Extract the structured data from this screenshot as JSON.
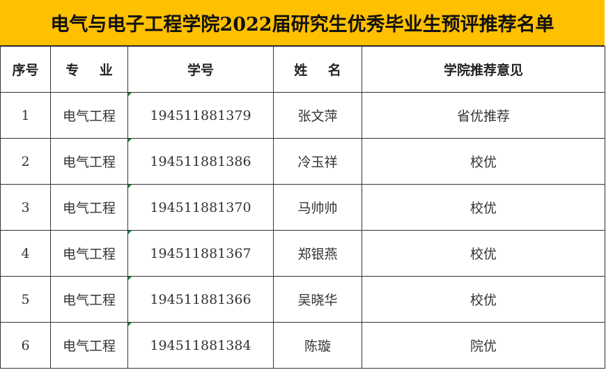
{
  "title": "电气与电子工程学院2022届研究生优秀毕业生预评推荐名单",
  "colors": {
    "title_bg": "#FFC000"
  },
  "headers": [
    "序号",
    "专 业",
    "学号",
    "姓 名",
    "学院推荐意见"
  ],
  "rows": [
    [
      "1",
      "电气工程",
      "194511881379",
      "张文萍",
      "省优推荐"
    ],
    [
      "2",
      "电气工程",
      "194511881386",
      "冷玉祥",
      "校优"
    ],
    [
      "3",
      "电气工程",
      "194511881370",
      "马帅帅",
      "校优"
    ],
    [
      "4",
      "电气工程",
      "194511881367",
      "郑银燕",
      "校优"
    ],
    [
      "5",
      "电气工程",
      "194511881366",
      "吴晓华",
      "校优"
    ],
    [
      "6",
      "电气工程",
      "194511881384",
      "陈璇",
      "院优"
    ]
  ]
}
